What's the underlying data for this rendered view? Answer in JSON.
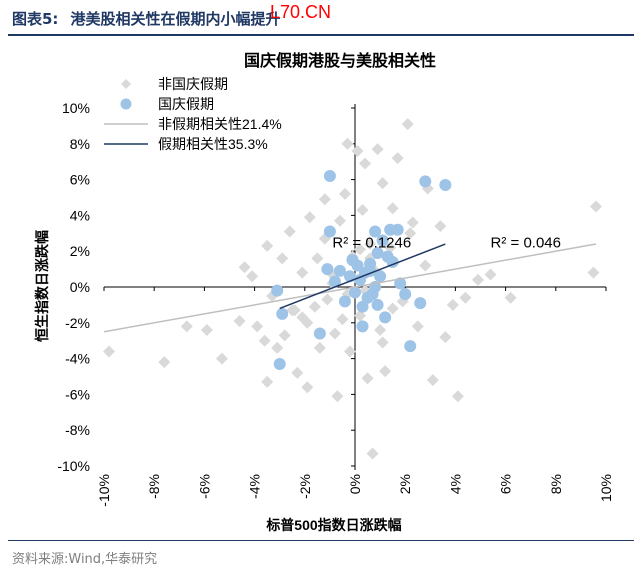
{
  "figure": {
    "label": "图表5:",
    "caption": "港美股相关性在假期内小幅提升",
    "watermark": "L70.CN",
    "source": "资料来源:Wind,华泰研究"
  },
  "chart_data": {
    "type": "scatter",
    "title": "国庆假期港股与美股相关性",
    "xlabel": "标普500指数日涨跌幅",
    "ylabel": "恒生指数日涨跌幅",
    "xlim": [
      -10,
      10
    ],
    "ylim": [
      -10,
      10
    ],
    "xticks": [
      "-10%",
      "-8%",
      "-6%",
      "-4%",
      "-2%",
      "0%",
      "2%",
      "4%",
      "6%",
      "8%",
      "10%"
    ],
    "yticks": [
      "10%",
      "8%",
      "6%",
      "4%",
      "2%",
      "0%",
      "-2%",
      "-4%",
      "-6%",
      "-8%",
      "-10%"
    ],
    "grid": false,
    "legend_position": "top-left",
    "legend": [
      {
        "label": "非国庆假期",
        "marker": "diamond",
        "color": "#d9d9d9"
      },
      {
        "label": "国庆假期",
        "marker": "circle",
        "color": "#9dc3e6"
      },
      {
        "label": "非假期相关性21.4%",
        "marker": "line",
        "color": "#bfbfbf"
      },
      {
        "label": "假期相关性35.3%",
        "marker": "line",
        "color": "#1f3864"
      }
    ],
    "annotations": [
      {
        "text": "R² = 0.1246",
        "x": -0.9,
        "y": 2.2
      },
      {
        "text": "R² = 0.046",
        "x": 5.4,
        "y": 2.2
      }
    ],
    "series": [
      {
        "name": "非国庆假期",
        "color": "#d9d9d9",
        "x": [
          -9.8,
          -7.6,
          -6.7,
          -5.9,
          -5.3,
          -4.6,
          -4.4,
          -4.1,
          -3.9,
          -3.5,
          -3.5,
          -3.3,
          -3.1,
          -2.9,
          -2.8,
          -2.6,
          -2.4,
          -2.3,
          -2.1,
          -1.9,
          -1.8,
          -1.6,
          -1.5,
          -1.4,
          -1.2,
          -1.1,
          -0.9,
          -0.8,
          -0.6,
          -0.5,
          -0.4,
          -0.3,
          -0.2,
          -0.1,
          0.1,
          0.2,
          0.3,
          0.4,
          0.5,
          0.6,
          0.7,
          0.8,
          1.0,
          1.1,
          1.2,
          1.4,
          1.5,
          1.7,
          1.9,
          2.1,
          2.3,
          2.5,
          2.8,
          3.1,
          3.4,
          3.9,
          4.4,
          4.9,
          5.4,
          6.2,
          9.6,
          9.5,
          2.2,
          0.9,
          -1.9,
          -2.5,
          -3.6,
          1.5,
          -0.7,
          0.4,
          2.9,
          3.6,
          4.1,
          -0.3,
          0.6,
          -1.2,
          1.1,
          -2.1,
          0.2,
          -0.9
        ],
        "y": [
          -3.6,
          -4.2,
          -2.2,
          -2.4,
          -4.0,
          -1.9,
          1.1,
          0.6,
          -2.2,
          2.3,
          -5.3,
          -0.5,
          -3.4,
          1.6,
          -2.7,
          3.1,
          -1.3,
          -4.8,
          0.8,
          -2.0,
          3.9,
          -1.1,
          1.6,
          -3.4,
          2.7,
          -0.7,
          0.2,
          -2.6,
          3.7,
          -1.8,
          5.2,
          -0.4,
          -3.6,
          1.7,
          7.6,
          -1.6,
          4.3,
          -0.2,
          -5.1,
          2.4,
          -9.3,
          0.9,
          -2.4,
          5.8,
          -4.7,
          2.2,
          -1.2,
          7.2,
          -0.8,
          9.1,
          3.6,
          -2.2,
          1.2,
          -5.2,
          3.4,
          -1.0,
          -0.6,
          0.4,
          0.7,
          -0.6,
          4.5,
          0.8,
          3.0,
          7.7,
          -5.6,
          -1.3,
          -3.0,
          4.4,
          -6.1,
          6.9,
          5.5,
          -2.8,
          -6.1,
          8.0,
          1.6,
          4.9,
          -3.1,
          -1.7,
          2.1,
          0.7
        ]
      },
      {
        "name": "国庆假期",
        "color": "#9dc3e6",
        "x": [
          -1.0,
          -1.0,
          2.8,
          3.6,
          0.8,
          1.7,
          -3.0,
          -2.9,
          -3.1,
          -1.4,
          -1.1,
          -0.8,
          -0.6,
          -0.4,
          -0.2,
          0.0,
          0.1,
          0.2,
          0.3,
          0.4,
          0.5,
          0.6,
          0.7,
          0.8,
          0.9,
          1.0,
          1.1,
          1.2,
          1.3,
          1.5,
          1.8,
          2.0,
          2.2,
          2.6,
          -0.1,
          0.3,
          0.6,
          0.9,
          1.4
        ],
        "y": [
          6.2,
          3.1,
          5.9,
          5.7,
          3.1,
          3.2,
          -4.3,
          -1.5,
          -0.2,
          -2.6,
          1.0,
          0.3,
          0.9,
          -0.8,
          0.6,
          -0.3,
          1.2,
          0.4,
          -1.1,
          0.8,
          -0.6,
          1.3,
          -0.4,
          0.0,
          -1.0,
          0.6,
          2.6,
          -1.7,
          1.7,
          1.4,
          0.2,
          -0.4,
          -3.3,
          -0.9,
          1.5,
          -2.2,
          0.9,
          1.9,
          3.2
        ]
      }
    ],
    "trendlines": [
      {
        "name": "非假期相关性21.4%",
        "color": "#bfbfbf",
        "x": [
          -10,
          9.6
        ],
        "y": [
          -2.5,
          2.4
        ]
      },
      {
        "name": "假期相关性35.3%",
        "color": "#1f3864",
        "x": [
          -3.0,
          3.6
        ],
        "y": [
          -1.2,
          2.4
        ]
      }
    ]
  }
}
